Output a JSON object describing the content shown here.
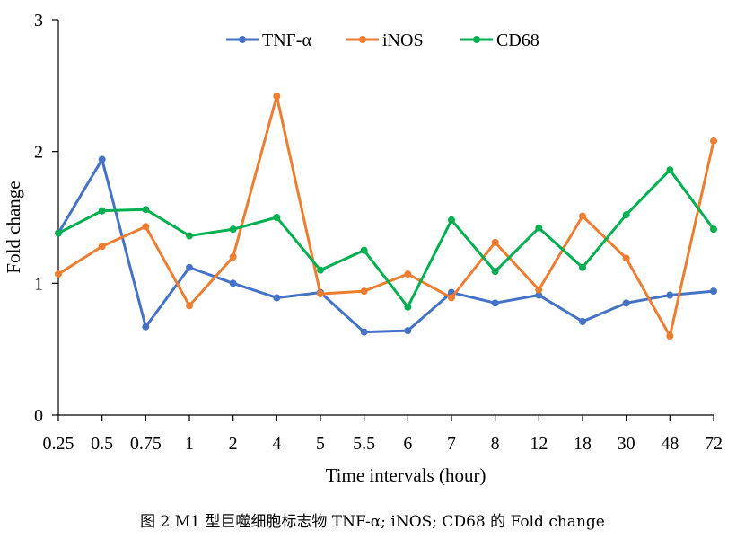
{
  "chart_data": {
    "type": "line",
    "title": "",
    "xlabel": "Time intervals (hour)",
    "ylabel": "Fold change",
    "ylim": [
      0,
      3
    ],
    "yticks": [
      "0",
      "1",
      "2",
      "3"
    ],
    "grid": false,
    "legend_position": "top",
    "categories": [
      "0.25",
      "0.5",
      "0.75",
      "1",
      "2",
      "4",
      "5",
      "5.5",
      "6",
      "7",
      "8",
      "12",
      "18",
      "30",
      "48",
      "72"
    ],
    "series": [
      {
        "name": "TNF-α",
        "color": "#4472C4",
        "values": [
          1.38,
          1.94,
          0.67,
          1.12,
          1.0,
          0.89,
          0.93,
          0.63,
          0.64,
          0.93,
          0.85,
          0.91,
          0.71,
          0.85,
          0.91,
          0.94
        ]
      },
      {
        "name": "iNOS",
        "color": "#ED7D31",
        "values": [
          1.07,
          1.28,
          1.43,
          0.83,
          1.2,
          2.42,
          0.92,
          0.94,
          1.07,
          0.89,
          1.31,
          0.95,
          1.51,
          1.19,
          0.6,
          2.08
        ]
      },
      {
        "name": "CD68",
        "color": "#00B050",
        "values": [
          1.38,
          1.55,
          1.56,
          1.36,
          1.41,
          1.5,
          1.1,
          1.25,
          0.82,
          1.48,
          1.09,
          1.42,
          1.12,
          1.52,
          1.86,
          1.41
        ]
      }
    ]
  },
  "caption": "图 2 M1 型巨噬细胞标志物 TNF-α; iNOS; CD68 的 Fold change"
}
